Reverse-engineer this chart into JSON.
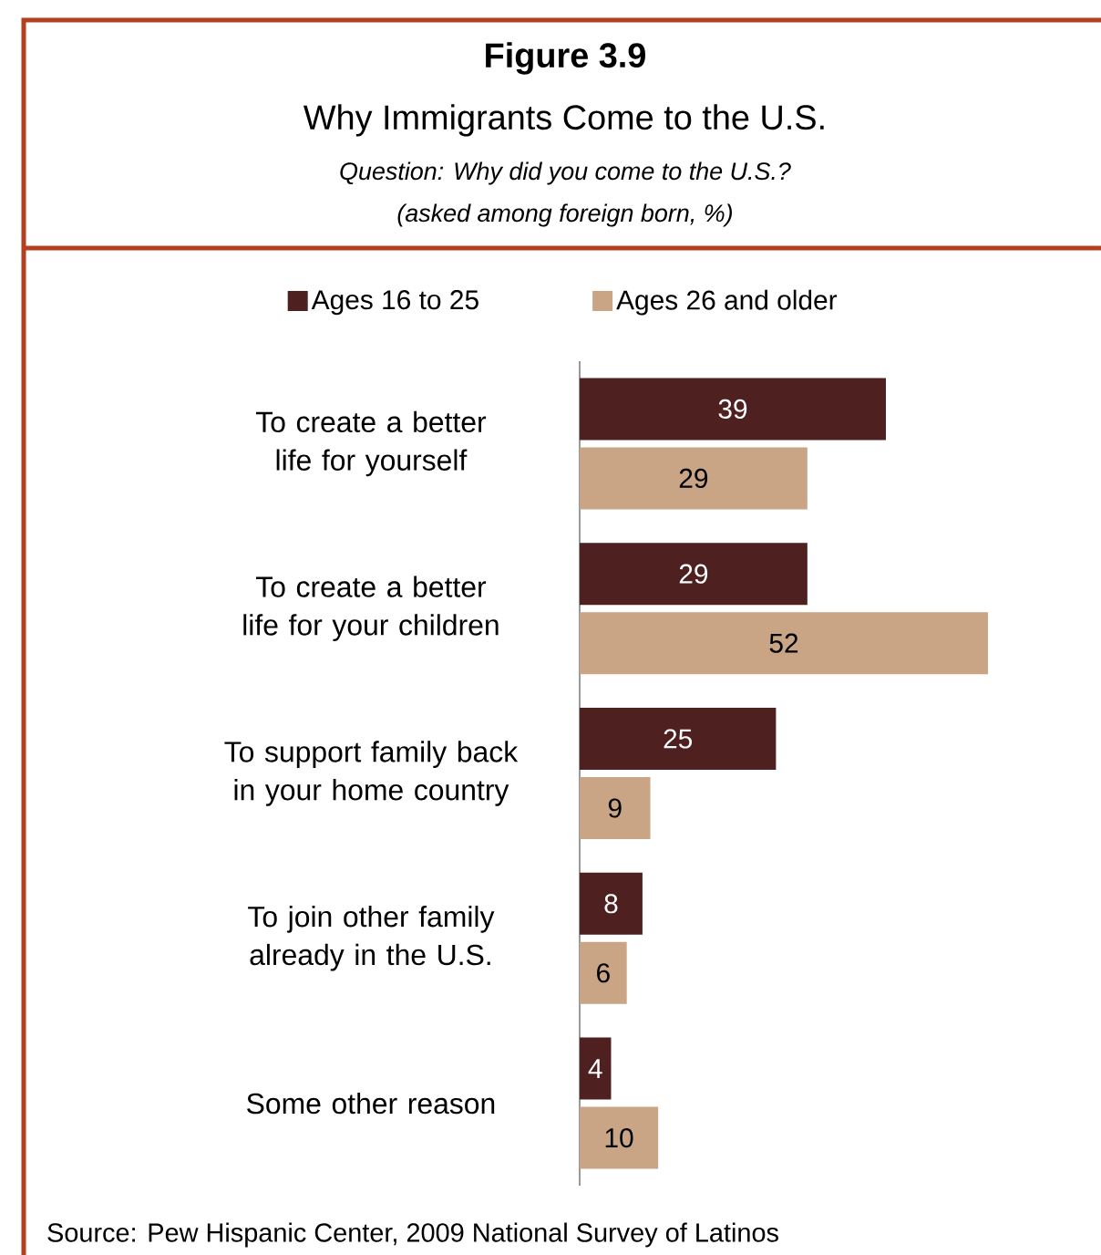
{
  "chart_data": {
    "type": "bar",
    "orientation": "horizontal",
    "title": "Why Immigrants Come to the U.S.",
    "subtitle": "Question: Why did you come to the U.S.?",
    "annotations": [
      "Figure 3.9",
      "(asked among foreign born, %)",
      "Source: Pew Hispanic Center, 2009 National Survey of Latinos"
    ],
    "categories": [
      "To create a better life for yourself",
      "To create a better life for your children",
      "To support family back in your home country",
      "To join other family already in the U.S.",
      "Some other reason"
    ],
    "series": [
      {
        "name": "Ages 16 to 25",
        "color": "#4f2020",
        "values": [
          39,
          29,
          25,
          8,
          4
        ]
      },
      {
        "name": "Ages 26 and older",
        "color": "#c9a586",
        "values": [
          29,
          52,
          9,
          6,
          10
        ]
      }
    ],
    "data_labels": true,
    "legend": "top"
  }
}
